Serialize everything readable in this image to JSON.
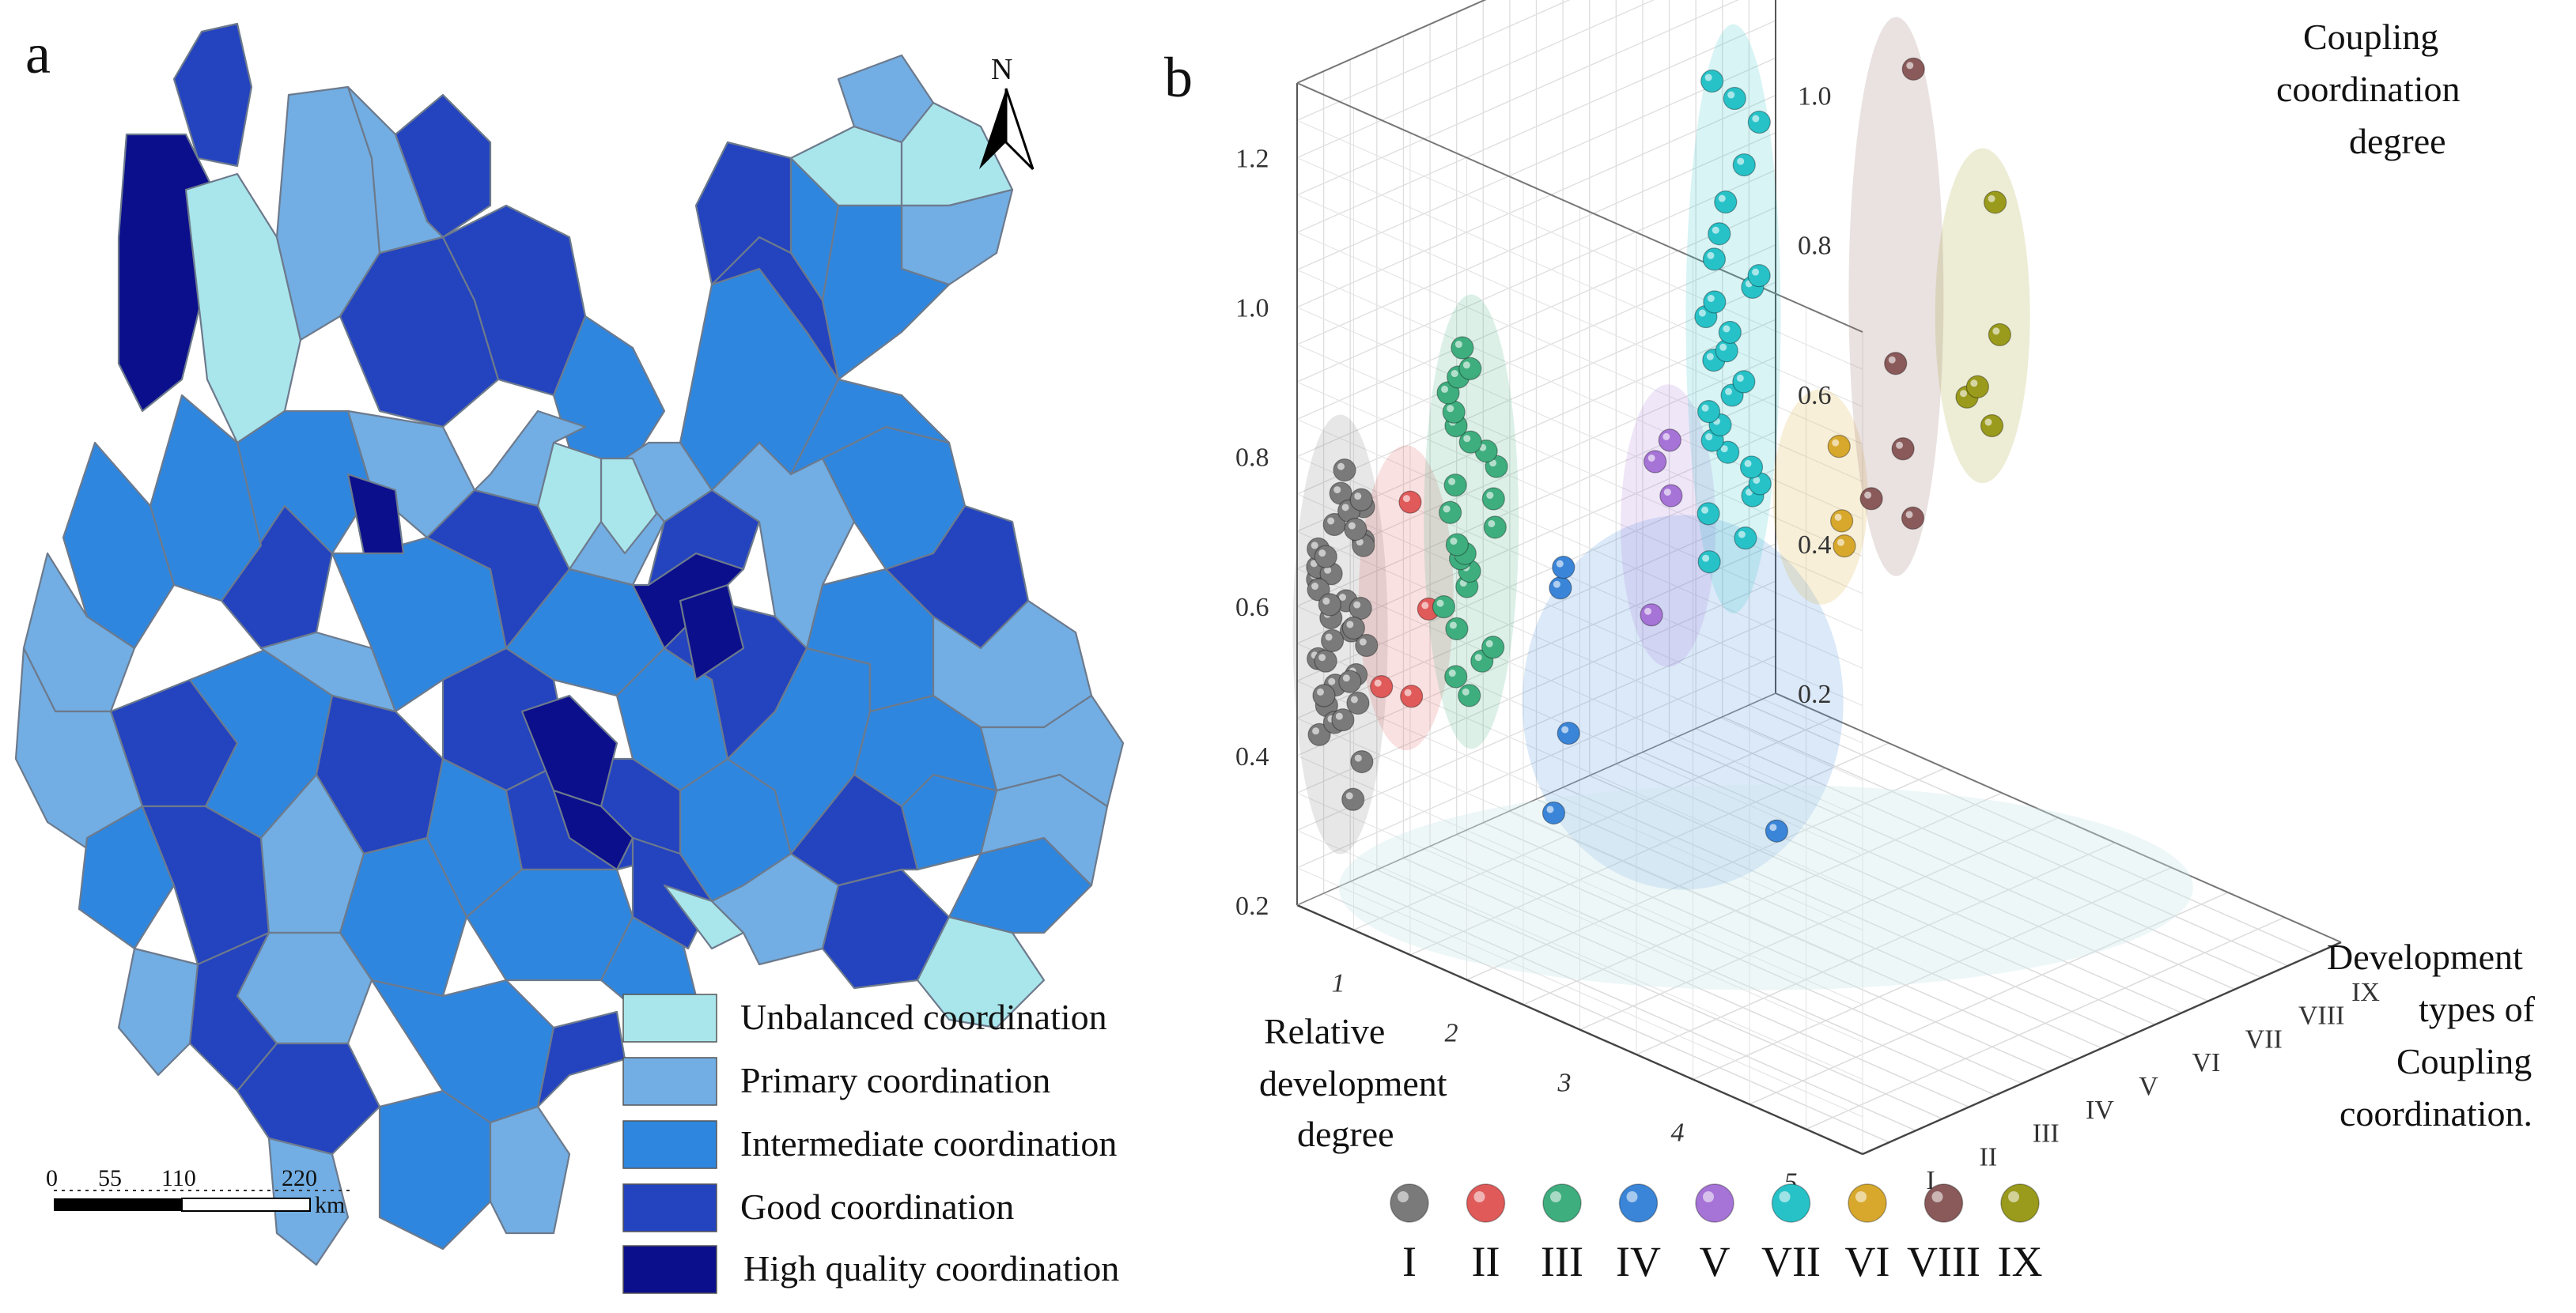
{
  "panel_a": {
    "label": "a",
    "north_label": "N",
    "scale_bar": {
      "ticks": [
        "0",
        "55",
        "110",
        "220"
      ],
      "unit": "km"
    },
    "legend": [
      {
        "label": "Unbalanced coordination",
        "color": "#a9e6ec"
      },
      {
        "label": "Primary coordination",
        "color": "#72aee3"
      },
      {
        "label": "Intermediate coordination",
        "color": "#2f86de"
      },
      {
        "label": "Good coordination",
        "color": "#2443bf"
      },
      {
        "label": "High quality coordination",
        "color": "#0b0f8c"
      }
    ]
  },
  "chart_data": {
    "type": "scatter",
    "panel_label": "b",
    "title": "",
    "xlabel": "Relative development degree",
    "ylabel": "Development types of Coupling coordination.",
    "zlabel": "Coupling coordination degree",
    "xlabel_lines": [
      "Relative",
      "development",
      "degree"
    ],
    "ylabel_lines": [
      "Development",
      "types of",
      "Coupling",
      "coordination."
    ],
    "zlabel_lines": [
      "Coupling",
      "coordination",
      "degree"
    ],
    "x_ticks": [
      "1",
      "2",
      "3",
      "4",
      "5"
    ],
    "y_ticks": [
      "I",
      "II",
      "III",
      "IV",
      "V",
      "VI",
      "VII",
      "VIII",
      "IX"
    ],
    "z_ticks": [
      "0.2",
      "0.4",
      "0.6",
      "0.8",
      "1.0",
      "1.2"
    ],
    "xlim": [
      0.5,
      5.5
    ],
    "ylim": [
      0,
      9
    ],
    "zlim": [
      0.2,
      1.3
    ],
    "grid": true,
    "series": [
      {
        "name": "I",
        "color": "#7a7a7a",
        "points": [
          [
            0.6,
            0.6,
            0.33
          ],
          [
            0.6,
            0.6,
            0.38
          ],
          [
            0.6,
            0.6,
            0.42
          ],
          [
            0.6,
            0.6,
            0.45
          ],
          [
            0.6,
            0.6,
            0.48
          ],
          [
            0.6,
            0.6,
            0.5
          ],
          [
            0.6,
            0.6,
            0.52
          ],
          [
            0.6,
            0.6,
            0.55
          ],
          [
            0.6,
            0.6,
            0.57
          ],
          [
            0.6,
            0.6,
            0.6
          ],
          [
            0.6,
            0.6,
            0.62
          ],
          [
            0.6,
            0.6,
            0.64
          ],
          [
            0.6,
            0.6,
            0.66
          ],
          [
            0.6,
            0.6,
            0.68
          ],
          [
            0.6,
            0.6,
            0.7
          ],
          [
            0.6,
            0.6,
            0.72
          ],
          [
            0.6,
            0.6,
            0.74
          ],
          [
            0.6,
            0.6,
            0.77
          ],
          [
            0.6,
            0.6,
            0.43
          ],
          [
            0.6,
            0.6,
            0.47
          ],
          [
            0.6,
            0.6,
            0.53
          ],
          [
            0.6,
            0.6,
            0.58
          ],
          [
            0.6,
            0.6,
            0.63
          ],
          [
            0.6,
            0.6,
            0.67
          ],
          [
            0.6,
            0.6,
            0.71
          ],
          [
            0.6,
            0.6,
            0.51
          ],
          [
            0.6,
            0.6,
            0.56
          ],
          [
            0.6,
            0.6,
            0.61
          ],
          [
            0.6,
            0.6,
            0.65
          ],
          [
            0.6,
            0.6,
            0.69
          ],
          [
            0.6,
            0.6,
            0.44
          ],
          [
            0.6,
            0.6,
            0.49
          ],
          [
            0.6,
            0.6,
            0.54
          ],
          [
            0.6,
            0.6,
            0.59
          ],
          [
            0.6,
            0.6,
            0.73
          ],
          [
            0.6,
            0.6,
            0.46
          ]
        ]
      },
      {
        "name": "II",
        "color": "#e05a5a",
        "points": [
          [
            0.9,
            1.2,
            0.47
          ],
          [
            0.9,
            1.2,
            0.48
          ],
          [
            0.9,
            1.2,
            0.58
          ],
          [
            0.9,
            1.2,
            0.73
          ]
        ]
      },
      {
        "name": "III",
        "color": "#3fae7e",
        "points": [
          [
            1.1,
            2.0,
            0.46
          ],
          [
            1.1,
            2.0,
            0.48
          ],
          [
            1.1,
            2.0,
            0.5
          ],
          [
            1.1,
            2.0,
            0.52
          ],
          [
            1.1,
            2.0,
            0.55
          ],
          [
            1.1,
            2.0,
            0.58
          ],
          [
            1.1,
            2.0,
            0.6
          ],
          [
            1.1,
            2.0,
            0.62
          ],
          [
            1.1,
            2.0,
            0.64
          ],
          [
            1.1,
            2.0,
            0.65
          ],
          [
            1.1,
            2.0,
            0.66
          ],
          [
            1.1,
            2.0,
            0.68
          ],
          [
            1.1,
            2.0,
            0.7
          ],
          [
            1.1,
            2.0,
            0.72
          ],
          [
            1.1,
            2.0,
            0.74
          ],
          [
            1.1,
            2.0,
            0.76
          ],
          [
            1.1,
            2.0,
            0.78
          ],
          [
            1.1,
            2.0,
            0.8
          ],
          [
            1.1,
            2.0,
            0.82
          ],
          [
            1.1,
            2.0,
            0.84
          ],
          [
            1.1,
            2.0,
            0.86
          ],
          [
            1.1,
            2.0,
            0.88
          ],
          [
            1.1,
            2.0,
            0.9
          ],
          [
            1.1,
            2.0,
            0.92
          ]
        ]
      },
      {
        "name": "IV",
        "color": "#3a85d8",
        "points": [
          [
            1.5,
            3.0,
            0.6
          ],
          [
            1.5,
            3.0,
            0.62
          ],
          [
            1.5,
            3.0,
            0.4
          ],
          [
            1.5,
            3.0,
            0.3
          ],
          [
            3.5,
            3.0,
            0.4
          ]
        ]
      },
      {
        "name": "V",
        "color": "#a673d6",
        "points": [
          [
            1.9,
            4.0,
            0.56
          ],
          [
            1.9,
            4.0,
            0.72
          ],
          [
            1.9,
            4.0,
            0.76
          ],
          [
            1.9,
            4.0,
            0.79
          ]
        ]
      },
      {
        "name": "VII",
        "color": "#27c2c8",
        "points": [
          [
            2.1,
            4.8,
            0.62
          ],
          [
            2.1,
            4.8,
            0.65
          ],
          [
            2.1,
            4.8,
            0.68
          ],
          [
            2.1,
            4.8,
            0.7
          ],
          [
            2.1,
            4.8,
            0.72
          ],
          [
            2.1,
            4.8,
            0.74
          ],
          [
            2.1,
            4.8,
            0.76
          ],
          [
            2.1,
            4.8,
            0.78
          ],
          [
            2.1,
            4.8,
            0.8
          ],
          [
            2.1,
            4.8,
            0.82
          ],
          [
            2.1,
            4.8,
            0.84
          ],
          [
            2.1,
            4.8,
            0.86
          ],
          [
            2.1,
            4.8,
            0.88
          ],
          [
            2.1,
            4.8,
            0.9
          ],
          [
            2.1,
            4.8,
            0.92
          ],
          [
            2.1,
            4.8,
            0.94
          ],
          [
            2.1,
            4.8,
            0.96
          ],
          [
            2.1,
            4.8,
            0.98
          ],
          [
            2.1,
            4.8,
            1.0
          ],
          [
            2.1,
            4.8,
            1.02
          ],
          [
            2.1,
            4.8,
            1.05
          ],
          [
            2.1,
            4.8,
            1.1
          ],
          [
            2.1,
            4.8,
            1.15
          ],
          [
            2.1,
            4.8,
            1.2
          ],
          [
            2.1,
            4.8,
            1.24
          ],
          [
            2.1,
            4.8,
            1.26
          ]
        ]
      },
      {
        "name": "VI",
        "color": "#d7a82c",
        "points": [
          [
            2.4,
            5.8,
            0.62
          ],
          [
            2.4,
            5.8,
            0.66
          ],
          [
            2.4,
            5.8,
            0.76
          ]
        ]
      },
      {
        "name": "VIII",
        "color": "#8a5a5a",
        "points": [
          [
            2.6,
            6.8,
            0.64
          ],
          [
            2.6,
            6.8,
            0.67
          ],
          [
            2.6,
            6.8,
            0.74
          ],
          [
            2.6,
            6.8,
            0.85
          ],
          [
            2.6,
            6.8,
            1.24
          ]
        ]
      },
      {
        "name": "IX",
        "color": "#9a9a1c",
        "points": [
          [
            2.8,
            8.0,
            0.74
          ],
          [
            2.8,
            8.0,
            0.78
          ],
          [
            2.8,
            8.0,
            0.8
          ],
          [
            2.8,
            8.0,
            0.86
          ],
          [
            2.8,
            8.0,
            1.04
          ]
        ]
      }
    ],
    "legend": [
      "I",
      "II",
      "III",
      "IV",
      "V",
      "VII",
      "VI",
      "VIII",
      "IX"
    ]
  }
}
